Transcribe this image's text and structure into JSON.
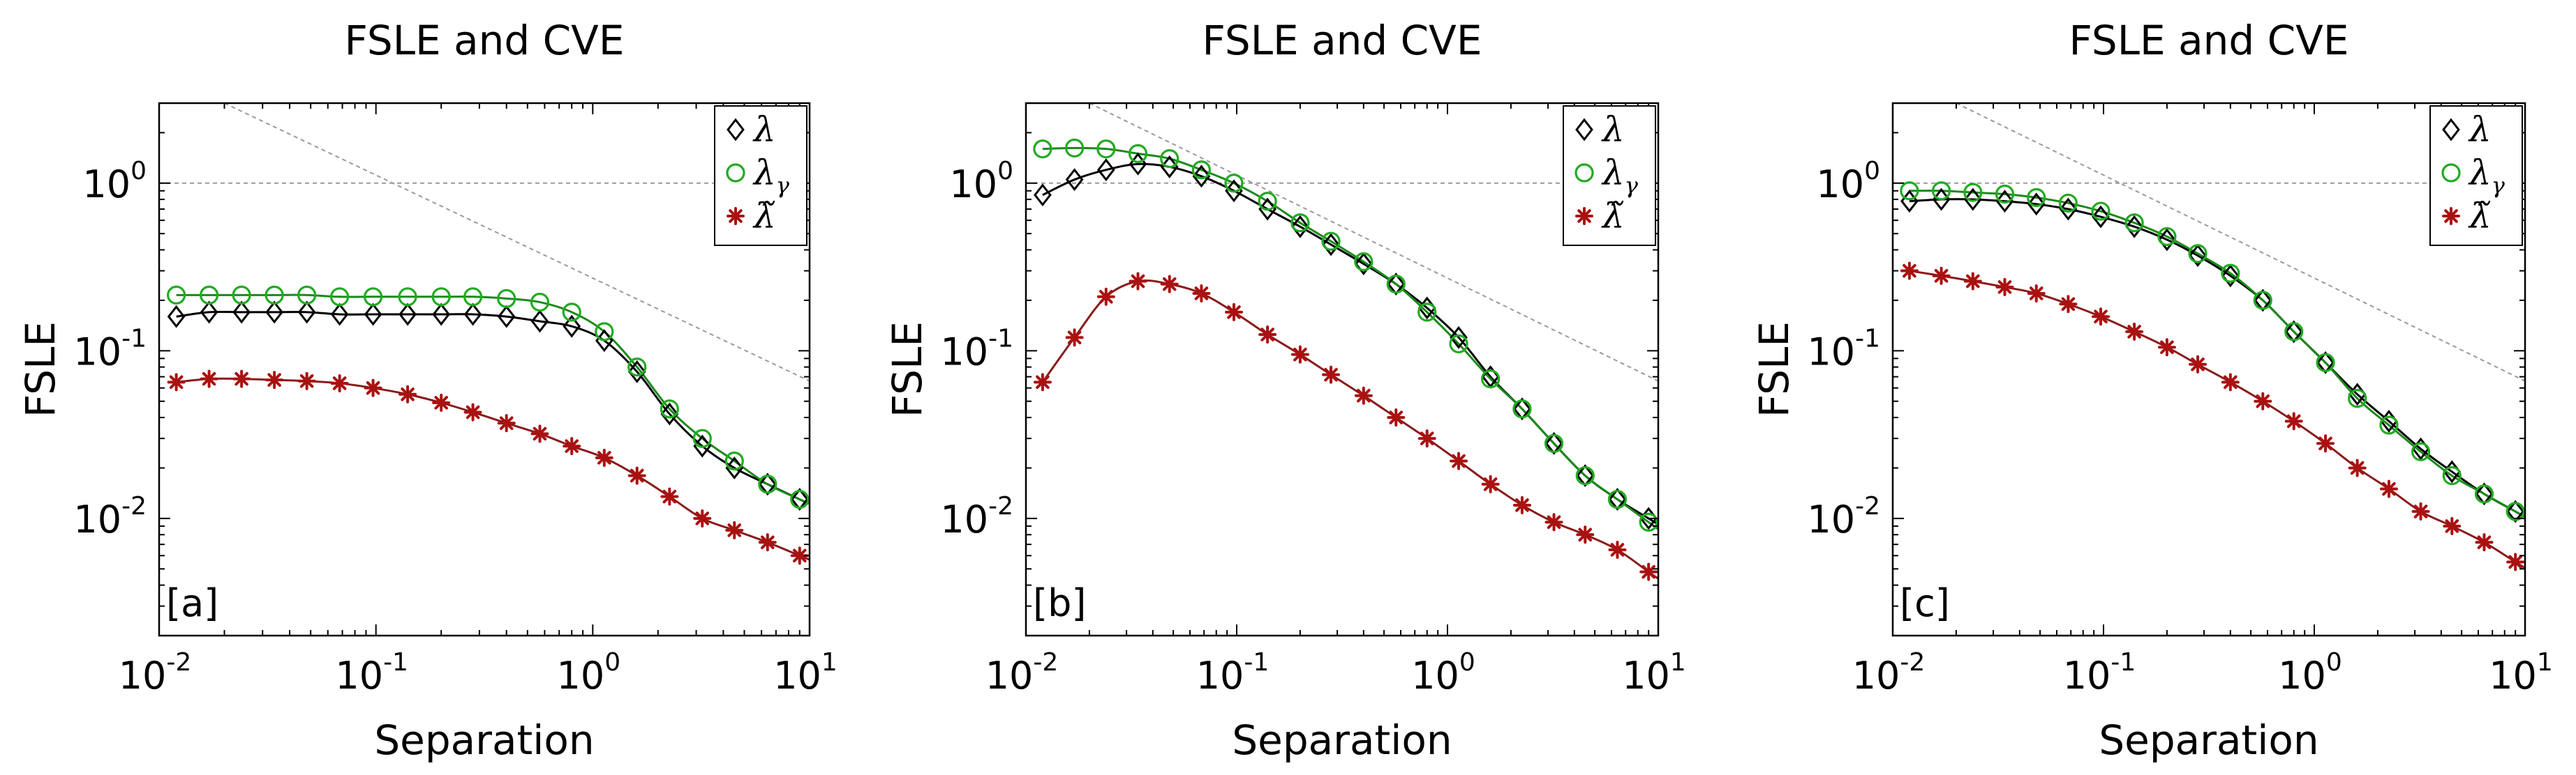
{
  "figure_title": "FSLE and CVE panels [a], [b], [c]",
  "colors": {
    "lambda": "#000000",
    "lambda_gamma": "#22aa22",
    "lambda_tilde": "#aa1111",
    "lambda_tilde_line": "#8b1a1a",
    "lambda_gamma_line": "#1a8a1a",
    "reference": "#9a9a9a"
  },
  "legend": [
    {
      "key": "lambda",
      "symbol": "diamond",
      "label": "λ",
      "sub": ""
    },
    {
      "key": "lambda_gamma",
      "symbol": "circle",
      "label": "λ",
      "sub": "γ"
    },
    {
      "key": "lambda_tilde",
      "symbol": "star",
      "label": "λ̃",
      "sub": ""
    }
  ],
  "chart_data": [
    {
      "type": "line",
      "panel": "[a]",
      "title": "FSLE and CVE",
      "xlabel": "Separation",
      "ylabel": "FSLE",
      "xscale": "log",
      "yscale": "log",
      "xlim": [
        0.01,
        10
      ],
      "ylim": [
        0.002,
        3
      ],
      "xticks": [
        {
          "base": "10",
          "exp": "-2"
        },
        {
          "base": "10",
          "exp": "-1"
        },
        {
          "base": "10",
          "exp": "0"
        },
        {
          "base": "10",
          "exp": "1"
        }
      ],
      "yticks": [
        {
          "base": "10",
          "exp": "-2"
        },
        {
          "base": "10",
          "exp": "-1"
        },
        {
          "base": "10",
          "exp": "0"
        }
      ],
      "reference_lines": [
        {
          "kind": "horizontal",
          "y": 1
        },
        {
          "kind": "power",
          "points": [
            [
              0.02,
              3
            ],
            [
              10,
              0.066
            ]
          ]
        }
      ],
      "x": [
        0.012,
        0.017,
        0.024,
        0.034,
        0.048,
        0.068,
        0.097,
        0.14,
        0.2,
        0.28,
        0.4,
        0.57,
        0.8,
        1.13,
        1.6,
        2.26,
        3.2,
        4.5,
        6.4,
        9.0
      ],
      "series": [
        {
          "name": "lambda",
          "marker": "diamond",
          "values": [
            0.16,
            0.17,
            0.17,
            0.17,
            0.17,
            0.165,
            0.165,
            0.165,
            0.165,
            0.165,
            0.16,
            0.15,
            0.14,
            0.115,
            0.075,
            0.042,
            0.027,
            0.02,
            0.016,
            0.013
          ]
        },
        {
          "name": "lambda_gamma",
          "marker": "circle",
          "values": [
            0.215,
            0.215,
            0.215,
            0.215,
            0.215,
            0.21,
            0.21,
            0.21,
            0.21,
            0.21,
            0.205,
            0.195,
            0.17,
            0.13,
            0.08,
            0.045,
            0.03,
            0.022,
            0.016,
            0.013
          ]
        },
        {
          "name": "lambda_tilde",
          "marker": "star",
          "values": [
            0.065,
            0.068,
            0.068,
            0.067,
            0.066,
            0.064,
            0.06,
            0.055,
            0.049,
            0.043,
            0.037,
            0.032,
            0.027,
            0.023,
            0.018,
            0.0135,
            0.01,
            0.0085,
            0.0072,
            0.006
          ]
        }
      ]
    },
    {
      "type": "line",
      "panel": "[b]",
      "title": "FSLE and CVE",
      "xlabel": "Separation",
      "ylabel": "FSLE",
      "xscale": "log",
      "yscale": "log",
      "xlim": [
        0.01,
        10
      ],
      "ylim": [
        0.002,
        3
      ],
      "xticks": [
        {
          "base": "10",
          "exp": "-2"
        },
        {
          "base": "10",
          "exp": "-1"
        },
        {
          "base": "10",
          "exp": "0"
        },
        {
          "base": "10",
          "exp": "1"
        }
      ],
      "yticks": [
        {
          "base": "10",
          "exp": "-2"
        },
        {
          "base": "10",
          "exp": "-1"
        },
        {
          "base": "10",
          "exp": "0"
        }
      ],
      "reference_lines": [
        {
          "kind": "horizontal",
          "y": 1
        },
        {
          "kind": "power",
          "points": [
            [
              0.02,
              3
            ],
            [
              10,
              0.066
            ]
          ]
        }
      ],
      "x": [
        0.012,
        0.017,
        0.024,
        0.034,
        0.048,
        0.068,
        0.097,
        0.14,
        0.2,
        0.28,
        0.4,
        0.57,
        0.8,
        1.13,
        1.6,
        2.26,
        3.2,
        4.5,
        6.4,
        9.0
      ],
      "series": [
        {
          "name": "lambda",
          "marker": "diamond",
          "values": [
            0.85,
            1.05,
            1.2,
            1.3,
            1.25,
            1.1,
            0.9,
            0.7,
            0.55,
            0.43,
            0.33,
            0.25,
            0.18,
            0.12,
            0.07,
            0.045,
            0.028,
            0.018,
            0.013,
            0.01
          ]
        },
        {
          "name": "lambda_gamma",
          "marker": "circle",
          "values": [
            1.6,
            1.62,
            1.6,
            1.5,
            1.4,
            1.2,
            1.0,
            0.78,
            0.58,
            0.45,
            0.34,
            0.25,
            0.17,
            0.11,
            0.068,
            0.045,
            0.028,
            0.018,
            0.013,
            0.0095
          ]
        },
        {
          "name": "lambda_tilde",
          "marker": "star",
          "values": [
            0.065,
            0.12,
            0.21,
            0.26,
            0.25,
            0.22,
            0.17,
            0.125,
            0.095,
            0.072,
            0.054,
            0.04,
            0.03,
            0.022,
            0.016,
            0.012,
            0.0095,
            0.008,
            0.0065,
            0.0048
          ]
        }
      ]
    },
    {
      "type": "line",
      "panel": "[c]",
      "title": "FSLE and CVE",
      "xlabel": "Separation",
      "ylabel": "FSLE",
      "xscale": "log",
      "yscale": "log",
      "xlim": [
        0.01,
        10
      ],
      "ylim": [
        0.002,
        3
      ],
      "xticks": [
        {
          "base": "10",
          "exp": "-2"
        },
        {
          "base": "10",
          "exp": "-1"
        },
        {
          "base": "10",
          "exp": "0"
        },
        {
          "base": "10",
          "exp": "1"
        }
      ],
      "yticks": [
        {
          "base": "10",
          "exp": "-2"
        },
        {
          "base": "10",
          "exp": "-1"
        },
        {
          "base": "10",
          "exp": "0"
        }
      ],
      "reference_lines": [
        {
          "kind": "horizontal",
          "y": 1
        },
        {
          "kind": "power",
          "points": [
            [
              0.02,
              3
            ],
            [
              10,
              0.066
            ]
          ]
        }
      ],
      "x": [
        0.012,
        0.017,
        0.024,
        0.034,
        0.048,
        0.068,
        0.097,
        0.14,
        0.2,
        0.28,
        0.4,
        0.57,
        0.8,
        1.13,
        1.6,
        2.26,
        3.2,
        4.5,
        6.4,
        9.0
      ],
      "series": [
        {
          "name": "lambda",
          "marker": "diamond",
          "values": [
            0.78,
            0.8,
            0.8,
            0.78,
            0.75,
            0.7,
            0.63,
            0.55,
            0.46,
            0.37,
            0.28,
            0.2,
            0.13,
            0.085,
            0.055,
            0.038,
            0.026,
            0.019,
            0.014,
            0.011
          ]
        },
        {
          "name": "lambda_gamma",
          "marker": "circle",
          "values": [
            0.9,
            0.9,
            0.88,
            0.86,
            0.82,
            0.76,
            0.68,
            0.58,
            0.48,
            0.38,
            0.29,
            0.2,
            0.13,
            0.085,
            0.052,
            0.036,
            0.025,
            0.018,
            0.014,
            0.011
          ]
        },
        {
          "name": "lambda_tilde",
          "marker": "star",
          "values": [
            0.3,
            0.28,
            0.26,
            0.24,
            0.22,
            0.19,
            0.16,
            0.13,
            0.105,
            0.083,
            0.065,
            0.05,
            0.038,
            0.028,
            0.02,
            0.015,
            0.011,
            0.009,
            0.0072,
            0.0055
          ]
        }
      ]
    }
  ]
}
